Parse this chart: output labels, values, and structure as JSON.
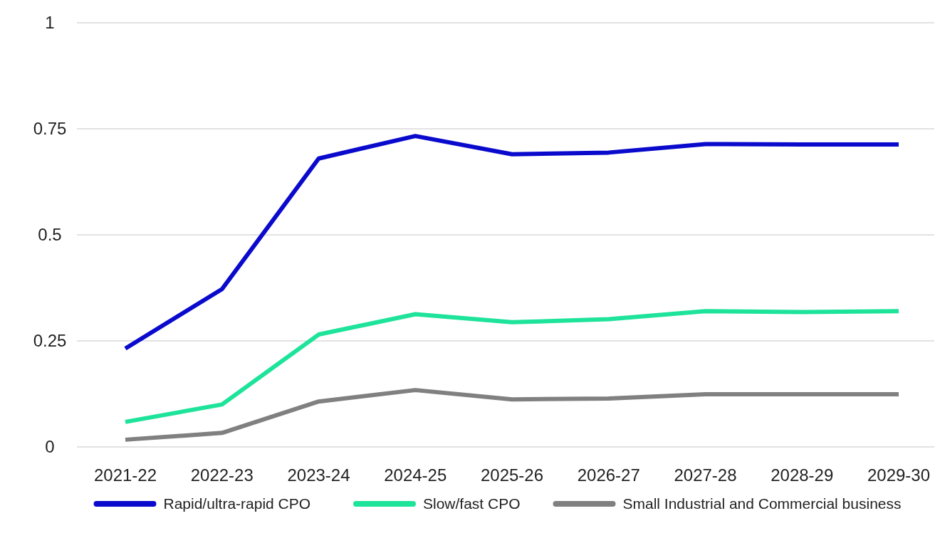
{
  "chart_data": {
    "type": "line",
    "categories": [
      "2021-22",
      "2022-23",
      "2023-24",
      "2024-25",
      "2025-26",
      "2026-27",
      "2027-28",
      "2028-29",
      "2029-30"
    ],
    "series": [
      {
        "name": "Rapid/ultra-rapid CPO",
        "color": "#0a0acd",
        "values": [
          0.232,
          0.372,
          0.68,
          0.733,
          0.69,
          0.694,
          0.714,
          0.713,
          0.713
        ]
      },
      {
        "name": "Slow/fast CPO",
        "color": "#1ee39a",
        "values": [
          0.059,
          0.1,
          0.265,
          0.313,
          0.294,
          0.301,
          0.32,
          0.318,
          0.32
        ]
      },
      {
        "name": "Small Industrial and Commercial business",
        "color": "#808080",
        "values": [
          0.017,
          0.033,
          0.107,
          0.134,
          0.112,
          0.114,
          0.124,
          0.124,
          0.124
        ]
      }
    ],
    "ylim": [
      0,
      1
    ],
    "yticks": [
      0,
      0.25,
      0.5,
      0.75,
      1
    ],
    "grid": "y",
    "legend": "bottom",
    "marker": "none",
    "line_style": "solid"
  }
}
